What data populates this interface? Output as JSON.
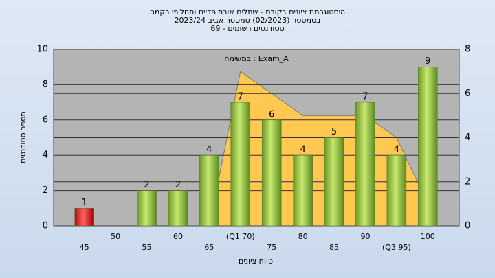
{
  "chart_data": {
    "type": "bar",
    "title": [
      "היסטוגרמת ציונים בקורס - שתלים אורתופדיים ותחליפי רקמה",
      "בסמסטר (02/2023) סמסטר אביב 2023/24",
      "סטודנטים רשומים - 69"
    ],
    "annotation": "במשימה : Exam_A",
    "xlabel": "טווח ציונים",
    "ylabel": "מספר סטודנטים",
    "categories": [
      "45",
      "50",
      "55",
      "60",
      "65",
      "(Q1 70)",
      "75",
      "80",
      "85",
      "90",
      "(Q3 95)",
      "100"
    ],
    "values": [
      1,
      0,
      2,
      2,
      4,
      7,
      6,
      4,
      5,
      7,
      4,
      9
    ],
    "colors": [
      "#e02020",
      "#8cc040",
      "#8cc040",
      "#8cc040",
      "#8cc040",
      "#8cc040",
      "#8cc040",
      "#8cc040",
      "#8cc040",
      "#8cc040",
      "#8cc040",
      "#8cc040"
    ],
    "ylim": [
      0,
      10
    ],
    "yticks": [
      0,
      2,
      4,
      6,
      8,
      10
    ],
    "y2lim": [
      0,
      8
    ],
    "y2ticks": [
      0,
      2,
      4,
      6,
      8
    ],
    "area": {
      "axis": "y2",
      "color": "#ffc850",
      "values": [
        null,
        null,
        null,
        null,
        0,
        7,
        6,
        5,
        5,
        5,
        4,
        1
      ]
    },
    "grid": true
  }
}
